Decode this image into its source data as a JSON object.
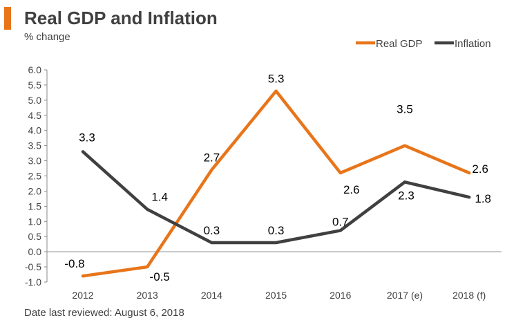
{
  "title": "Real GDP and Inflation",
  "subtitle": "% change",
  "footer": "Date last reviewed: August 6, 2018",
  "colors": {
    "accent": "#e8751a",
    "real_gdp": "#e8751a",
    "inflation": "#404040",
    "text": "#404040",
    "axis": "#888888"
  },
  "chart_data": {
    "type": "line",
    "title": "Real GDP and Inflation",
    "subtitle": "% change",
    "xlabel": "",
    "ylabel": "",
    "categories": [
      "2012",
      "2013",
      "2014",
      "2015",
      "2016",
      "2017 (e)",
      "2018 (f)"
    ],
    "ylim": [
      -1.0,
      6.0
    ],
    "yticks": [
      "-1.0",
      "-0.5",
      "0.0",
      "0.5",
      "1.0",
      "1.5",
      "2.0",
      "2.5",
      "3.0",
      "3.5",
      "4.0",
      "4.5",
      "5.0",
      "5.5",
      "6.0"
    ],
    "grid": false,
    "legend_position": "top-right",
    "series": [
      {
        "name": "Real GDP",
        "key": "real_gdp",
        "values": [
          -0.8,
          -0.5,
          2.7,
          5.3,
          2.6,
          3.5,
          2.6
        ],
        "labels": [
          "-0.8",
          "-0.5",
          "2.7",
          "5.3",
          "2.6",
          "3.5",
          "2.6"
        ]
      },
      {
        "name": "Inflation",
        "key": "inflation",
        "values": [
          3.3,
          1.4,
          0.3,
          0.3,
          0.7,
          2.3,
          1.8
        ],
        "labels": [
          "3.3",
          "1.4",
          "0.3",
          "0.3",
          "0.7",
          "2.3",
          "1.8"
        ]
      }
    ]
  }
}
